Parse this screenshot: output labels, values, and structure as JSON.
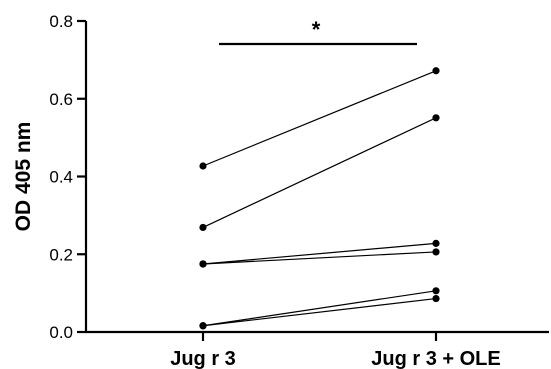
{
  "chart_data": {
    "type": "line",
    "title": "",
    "xlabel": "",
    "ylabel": "OD 405 nm",
    "categories": [
      "Jug r 3",
      "Jug r 3 + OLE"
    ],
    "ylim": [
      0.0,
      0.8
    ],
    "yticks": [
      "0.0",
      "0.2",
      "0.4",
      "0.6",
      "0.8"
    ],
    "grid": false,
    "legend": "none",
    "paired_series": [
      {
        "values": [
          0.427,
          0.672
        ]
      },
      {
        "values": [
          0.269,
          0.551
        ]
      },
      {
        "values": [
          0.175,
          0.228
        ]
      },
      {
        "values": [
          0.175,
          0.206
        ]
      },
      {
        "values": [
          0.016,
          0.106
        ]
      },
      {
        "values": [
          0.016,
          0.086
        ]
      }
    ],
    "significance": {
      "label": "*",
      "between": [
        "Jug r 3",
        "Jug r 3 + OLE"
      ]
    },
    "colors": {
      "line": "#000000",
      "marker": "#000000"
    }
  }
}
